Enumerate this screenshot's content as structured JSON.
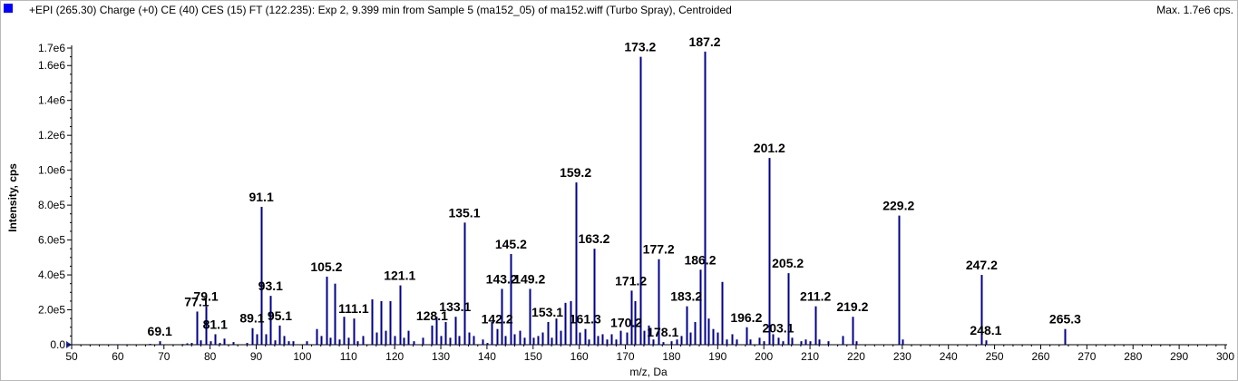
{
  "header": {
    "description": "+EPI (265.30) Charge (+0) CE (40) CES (15) FT (122.235): Exp 2, 9.399 min from Sample 5 (ma152_05) of ma152.wiff (Turbo Spray), Centroided",
    "max_label": "Max. 1.7e6 cps."
  },
  "colors": {
    "series": "#00008b",
    "swatch": "#0000ff",
    "axis": "#000000"
  },
  "chart_data": {
    "type": "bar",
    "title": "+EPI (265.30) Charge (+0) CE (40) CES (15) FT (122.235): Exp 2, 9.399 min from Sample 5 (ma152_05) of ma152.wiff (Turbo Spray), Centroided",
    "xlabel": "m/z, Da",
    "ylabel": "Intensity, cps",
    "xlim": [
      50,
      300
    ],
    "ylim": [
      0,
      1700000
    ],
    "xticks": [
      50,
      60,
      70,
      80,
      90,
      100,
      110,
      120,
      130,
      140,
      150,
      160,
      170,
      180,
      190,
      200,
      210,
      220,
      230,
      240,
      250,
      260,
      270,
      280,
      290,
      300
    ],
    "yticks": [
      {
        "value": 0,
        "label": "0.0"
      },
      {
        "value": 200000,
        "label": "2.0e5"
      },
      {
        "value": 400000,
        "label": "4.0e5"
      },
      {
        "value": 600000,
        "label": "6.0e5"
      },
      {
        "value": 800000,
        "label": "8.0e5"
      },
      {
        "value": 1000000,
        "label": "1.0e6"
      },
      {
        "value": 1200000,
        "label": "1.2e6"
      },
      {
        "value": 1400000,
        "label": "1.4e6"
      },
      {
        "value": 1600000,
        "label": "1.6e6"
      },
      {
        "value": 1700000,
        "label": "1.7e6"
      }
    ],
    "grid": false,
    "peaks": [
      [
        62.0,
        3000
      ],
      [
        67.0,
        5000
      ],
      [
        69.1,
        20000
      ],
      [
        74.0,
        4000
      ],
      [
        75.0,
        8000
      ],
      [
        76.0,
        10000
      ],
      [
        77.1,
        190000
      ],
      [
        78.0,
        25000
      ],
      [
        79.1,
        220000
      ],
      [
        80.0,
        20000
      ],
      [
        81.1,
        60000
      ],
      [
        82.0,
        10000
      ],
      [
        83.0,
        35000
      ],
      [
        85.0,
        15000
      ],
      [
        88.0,
        10000
      ],
      [
        89.1,
        95000
      ],
      [
        90.0,
        60000
      ],
      [
        91.1,
        790000
      ],
      [
        92.0,
        60000
      ],
      [
        93.1,
        280000
      ],
      [
        94.0,
        25000
      ],
      [
        95.1,
        110000
      ],
      [
        96.0,
        50000
      ],
      [
        97.0,
        20000
      ],
      [
        98.0,
        20000
      ],
      [
        101.0,
        20000
      ],
      [
        103.0,
        90000
      ],
      [
        104.0,
        50000
      ],
      [
        105.2,
        390000
      ],
      [
        106.0,
        40000
      ],
      [
        107.0,
        350000
      ],
      [
        108.0,
        30000
      ],
      [
        109.0,
        160000
      ],
      [
        110.0,
        40000
      ],
      [
        111.1,
        150000
      ],
      [
        112.0,
        20000
      ],
      [
        113.0,
        50000
      ],
      [
        115.0,
        260000
      ],
      [
        116.0,
        70000
      ],
      [
        117.0,
        250000
      ],
      [
        118.0,
        80000
      ],
      [
        119.0,
        250000
      ],
      [
        120.0,
        50000
      ],
      [
        121.1,
        340000
      ],
      [
        122.0,
        40000
      ],
      [
        123.0,
        80000
      ],
      [
        124.0,
        20000
      ],
      [
        126.0,
        40000
      ],
      [
        128.1,
        110000
      ],
      [
        129.0,
        160000
      ],
      [
        130.0,
        50000
      ],
      [
        131.0,
        130000
      ],
      [
        132.0,
        40000
      ],
      [
        133.1,
        160000
      ],
      [
        134.0,
        50000
      ],
      [
        135.1,
        700000
      ],
      [
        136.0,
        70000
      ],
      [
        137.0,
        50000
      ],
      [
        139.0,
        30000
      ],
      [
        140.0,
        10000
      ],
      [
        141.0,
        130000
      ],
      [
        142.2,
        90000
      ],
      [
        143.2,
        320000
      ],
      [
        144.0,
        50000
      ],
      [
        145.2,
        520000
      ],
      [
        146.0,
        60000
      ],
      [
        147.0,
        80000
      ],
      [
        148.0,
        40000
      ],
      [
        149.2,
        320000
      ],
      [
        150.0,
        40000
      ],
      [
        151.0,
        50000
      ],
      [
        152.0,
        70000
      ],
      [
        153.1,
        130000
      ],
      [
        154.0,
        40000
      ],
      [
        155.0,
        150000
      ],
      [
        156.0,
        80000
      ],
      [
        157.0,
        240000
      ],
      [
        158.0,
        250000
      ],
      [
        159.2,
        930000
      ],
      [
        160.0,
        70000
      ],
      [
        161.3,
        90000
      ],
      [
        162.0,
        30000
      ],
      [
        163.2,
        550000
      ],
      [
        164.0,
        50000
      ],
      [
        165.0,
        60000
      ],
      [
        166.0,
        30000
      ],
      [
        167.0,
        60000
      ],
      [
        168.0,
        30000
      ],
      [
        169.0,
        80000
      ],
      [
        170.2,
        70000
      ],
      [
        171.2,
        310000
      ],
      [
        172.0,
        250000
      ],
      [
        173.2,
        1650000
      ],
      [
        174.0,
        80000
      ],
      [
        175.0,
        110000
      ],
      [
        176.0,
        30000
      ],
      [
        177.2,
        490000
      ],
      [
        178.1,
        15000
      ],
      [
        180.0,
        20000
      ],
      [
        181.0,
        30000
      ],
      [
        182.0,
        50000
      ],
      [
        183.2,
        220000
      ],
      [
        184.0,
        70000
      ],
      [
        185.0,
        130000
      ],
      [
        186.2,
        430000
      ],
      [
        187.2,
        1680000
      ],
      [
        188.0,
        150000
      ],
      [
        189.0,
        90000
      ],
      [
        190.0,
        70000
      ],
      [
        191.0,
        360000
      ],
      [
        192.0,
        30000
      ],
      [
        193.0,
        60000
      ],
      [
        194.0,
        30000
      ],
      [
        196.2,
        100000
      ],
      [
        197.0,
        30000
      ],
      [
        199.0,
        40000
      ],
      [
        200.0,
        20000
      ],
      [
        201.2,
        1070000
      ],
      [
        202.0,
        60000
      ],
      [
        203.1,
        40000
      ],
      [
        204.0,
        20000
      ],
      [
        205.2,
        410000
      ],
      [
        206.0,
        40000
      ],
      [
        208.0,
        20000
      ],
      [
        209.0,
        30000
      ],
      [
        210.0,
        20000
      ],
      [
        211.2,
        220000
      ],
      [
        212.0,
        30000
      ],
      [
        214.0,
        20000
      ],
      [
        217.0,
        50000
      ],
      [
        219.2,
        160000
      ],
      [
        220.0,
        20000
      ],
      [
        229.2,
        740000
      ],
      [
        230.0,
        30000
      ],
      [
        247.2,
        400000
      ],
      [
        248.1,
        25000
      ],
      [
        265.3,
        90000
      ]
    ],
    "labels": [
      {
        "x": 69.1,
        "text": "69.1"
      },
      {
        "x": 77.1,
        "text": "77.1"
      },
      {
        "x": 79.1,
        "text": "79.1"
      },
      {
        "x": 81.1,
        "text": "81.1"
      },
      {
        "x": 89.1,
        "text": "89.1"
      },
      {
        "x": 91.1,
        "text": "91.1"
      },
      {
        "x": 93.1,
        "text": "93.1"
      },
      {
        "x": 95.1,
        "text": "95.1"
      },
      {
        "x": 105.2,
        "text": "105.2"
      },
      {
        "x": 111.1,
        "text": "111.1"
      },
      {
        "x": 121.1,
        "text": "121.1"
      },
      {
        "x": 128.1,
        "text": "128.1"
      },
      {
        "x": 133.1,
        "text": "133.1"
      },
      {
        "x": 135.1,
        "text": "135.1"
      },
      {
        "x": 142.2,
        "text": "142.2"
      },
      {
        "x": 143.2,
        "text": "143.2"
      },
      {
        "x": 145.2,
        "text": "145.2"
      },
      {
        "x": 149.2,
        "text": "149.2"
      },
      {
        "x": 153.1,
        "text": "153.1"
      },
      {
        "x": 159.2,
        "text": "159.2"
      },
      {
        "x": 161.3,
        "text": "161.3"
      },
      {
        "x": 163.2,
        "text": "163.2"
      },
      {
        "x": 170.2,
        "text": "170.2"
      },
      {
        "x": 171.2,
        "text": "171.2"
      },
      {
        "x": 173.2,
        "text": "173.2"
      },
      {
        "x": 177.2,
        "text": "177.2"
      },
      {
        "x": 178.1,
        "text": "178.1"
      },
      {
        "x": 183.2,
        "text": "183.2"
      },
      {
        "x": 186.2,
        "text": "186.2"
      },
      {
        "x": 187.2,
        "text": "187.2"
      },
      {
        "x": 196.2,
        "text": "196.2"
      },
      {
        "x": 201.2,
        "text": "201.2"
      },
      {
        "x": 203.1,
        "text": "203.1"
      },
      {
        "x": 205.2,
        "text": "205.2"
      },
      {
        "x": 211.2,
        "text": "211.2"
      },
      {
        "x": 219.2,
        "text": "219.2"
      },
      {
        "x": 229.2,
        "text": "229.2"
      },
      {
        "x": 247.2,
        "text": "247.2"
      },
      {
        "x": 248.1,
        "text": "248.1"
      },
      {
        "x": 265.3,
        "text": "265.3"
      }
    ]
  }
}
